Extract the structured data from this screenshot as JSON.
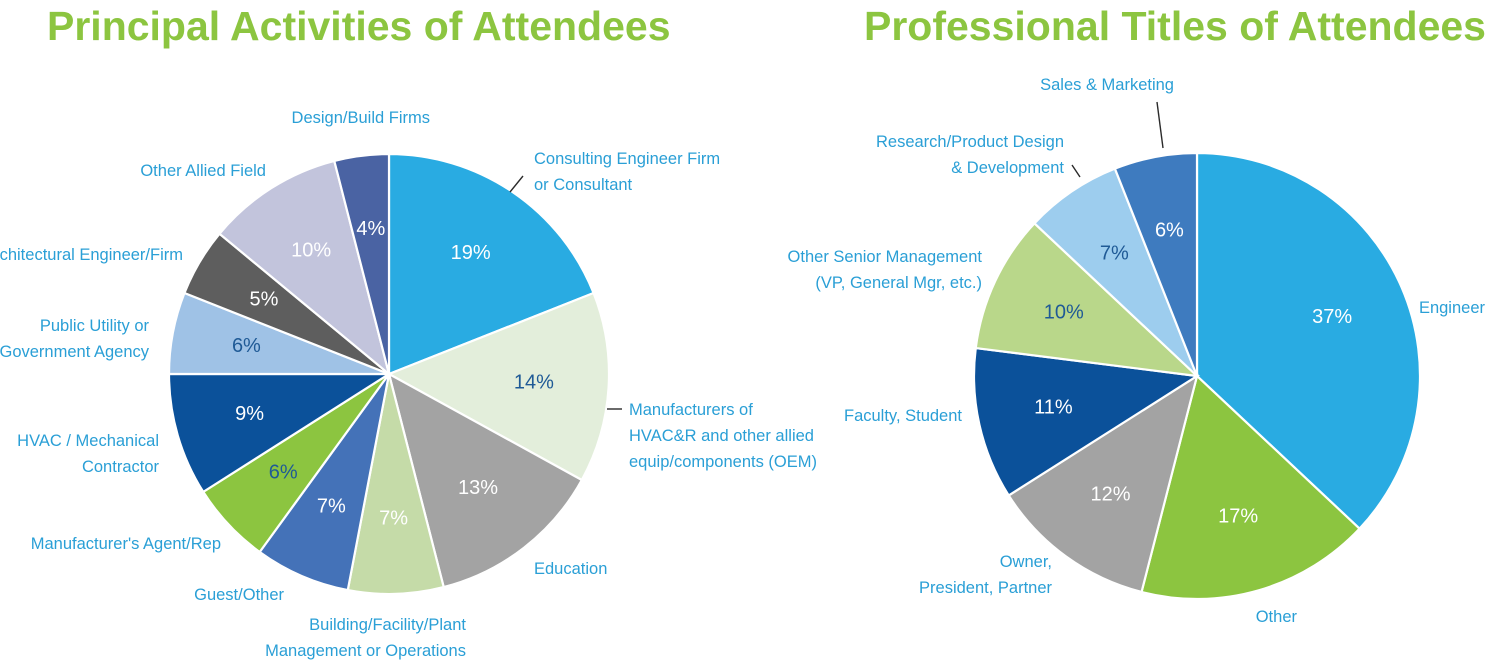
{
  "chart_data": [
    {
      "type": "pie",
      "title": "Principal Activities of Attendees",
      "unit": "%",
      "slices": [
        {
          "label": "Consulting Engineer Firm or Consultant",
          "lines": [
            "Consulting Engineer Firm",
            "or Consultant"
          ],
          "value": 19,
          "display": "19%",
          "color": "#29abe2",
          "text_color": "#ffffff"
        },
        {
          "label": "Manufacturers of HVAC&R and other allied equip/components (OEM)",
          "lines": [
            "Manufacturers of",
            "HVAC&R and other allied",
            "equip/components (OEM)"
          ],
          "value": 14,
          "display": "14%",
          "color": "#e3eedb",
          "text_color": "#1f5a96"
        },
        {
          "label": "Education",
          "lines": [
            "Education"
          ],
          "value": 13,
          "display": "13%",
          "color": "#a3a3a3",
          "text_color": "#ffffff"
        },
        {
          "label": "Building/Facility/Plant Management or Operations",
          "lines": [
            "Building/Facility/Plant",
            "Management or Operations"
          ],
          "value": 7,
          "display": "7%",
          "color": "#c5dba8",
          "text_color": "#ffffff"
        },
        {
          "label": "Guest/Other",
          "lines": [
            "Guest/Other"
          ],
          "value": 7,
          "display": "7%",
          "color": "#4472b8",
          "text_color": "#ffffff"
        },
        {
          "label": "Manufacturer's Agent/Rep",
          "lines": [
            "Manufacturer's Agent/Rep"
          ],
          "value": 6,
          "display": "6%",
          "color": "#8cc540",
          "text_color": "#1f5a96"
        },
        {
          "label": "HVAC / Mechanical Contractor",
          "lines": [
            "HVAC / Mechanical",
            "Contractor"
          ],
          "value": 9,
          "display": "9%",
          "color": "#0b519a",
          "text_color": "#ffffff"
        },
        {
          "label": "Public Utility or Government Agency",
          "lines": [
            "Public Utility or",
            "Government Agency"
          ],
          "value": 6,
          "display": "6%",
          "color": "#9fc2e6",
          "text_color": "#1f5a96"
        },
        {
          "label": "Architectural Engineer/Firm",
          "lines": [
            "Architectural Engineer/Firm"
          ],
          "value": 5,
          "display": "5%",
          "color": "#5e5e5e",
          "text_color": "#ffffff"
        },
        {
          "label": "Other Allied Field",
          "lines": [
            "Other Allied Field"
          ],
          "value": 10,
          "display": "10%",
          "color": "#c2c4dc",
          "text_color": "#ffffff"
        },
        {
          "label": "Design/Build Firms",
          "lines": [
            "Design/Build Firms"
          ],
          "value": 4,
          "display": "4%",
          "color": "#4a63a3",
          "text_color": "#ffffff"
        }
      ]
    },
    {
      "type": "pie",
      "title": "Professional Titles of Attendees",
      "unit": "%",
      "slices": [
        {
          "label": "Engineer",
          "lines": [
            "Engineer"
          ],
          "value": 37,
          "display": "37%",
          "color": "#29abe2",
          "text_color": "#ffffff"
        },
        {
          "label": "Other",
          "lines": [
            "Other"
          ],
          "value": 17,
          "display": "17%",
          "color": "#8cc540",
          "text_color": "#ffffff"
        },
        {
          "label": "Owner, President, Partner",
          "lines": [
            "Owner,",
            "President, Partner"
          ],
          "value": 12,
          "display": "12%",
          "color": "#a3a3a3",
          "text_color": "#ffffff"
        },
        {
          "label": "Faculty, Student",
          "lines": [
            "Faculty, Student"
          ],
          "value": 11,
          "display": "11%",
          "color": "#0b519a",
          "text_color": "#ffffff"
        },
        {
          "label": "Other Senior Management (VP, General Mgr, etc.)",
          "lines": [
            "Other Senior Management",
            "(VP, General Mgr, etc.)"
          ],
          "value": 10,
          "display": "10%",
          "color": "#b9d78a",
          "text_color": "#1f5a96"
        },
        {
          "label": "Research/Product Design & Development",
          "lines": [
            "Research/Product Design",
            "& Development"
          ],
          "value": 7,
          "display": "7%",
          "color": "#9dcdee",
          "text_color": "#1f5a96"
        },
        {
          "label": "Sales & Marketing",
          "lines": [
            "Sales & Marketing"
          ],
          "value": 6,
          "display": "6%",
          "color": "#3e7bbf",
          "text_color": "#ffffff"
        }
      ]
    }
  ]
}
